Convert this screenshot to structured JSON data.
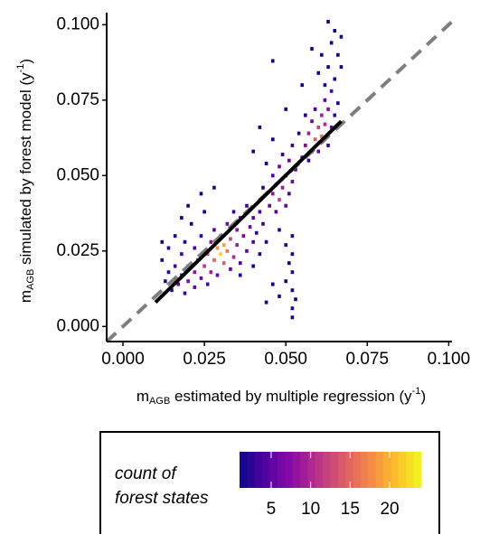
{
  "chart_data": {
    "type": "hist2d",
    "x_label": [
      {
        "text": "m"
      },
      {
        "text": "AGB",
        "style": "sub"
      },
      {
        "text": " estimated by multiple regression (y"
      },
      {
        "text": "-1",
        "style": "sup"
      },
      {
        "text": ")"
      }
    ],
    "y_label": [
      {
        "text": "m"
      },
      {
        "text": "AGB",
        "style": "sub"
      },
      {
        "text": " simulated by forest model (y"
      },
      {
        "text": "-1",
        "style": "sup"
      },
      {
        "text": ")"
      }
    ],
    "xlim": [
      -0.005,
      0.101
    ],
    "ylim": [
      -0.005,
      0.104
    ],
    "xticks": [
      {
        "value": 0,
        "label": "0.000"
      },
      {
        "value": 0.025,
        "label": "0.025"
      },
      {
        "value": 0.05,
        "label": "0.050"
      },
      {
        "value": 0.075,
        "label": "0.075"
      },
      {
        "value": 0.1,
        "label": "0.100"
      }
    ],
    "yticks": [
      {
        "value": 0,
        "label": "0.000"
      },
      {
        "value": 0.025,
        "label": "0.025"
      },
      {
        "value": 0.05,
        "label": "0.050"
      },
      {
        "value": 0.075,
        "label": "0.075"
      },
      {
        "value": 0.1,
        "label": "0.100"
      }
    ],
    "bin_width": 0.001,
    "bin_height": 0.0012,
    "colormap": "plasma",
    "identity_line": {
      "color": "#7f7f7f",
      "dashed": true
    },
    "fit_line": {
      "color": "#000000",
      "x": [
        0.01,
        0.067
      ],
      "y": [
        0.008,
        0.068
      ]
    },
    "legend": {
      "title": [
        "count of",
        "forest states"
      ],
      "clim": [
        1,
        24
      ],
      "ticks": [
        5,
        10,
        15,
        20
      ]
    },
    "cells": [
      [
        0.012,
        0.022,
        2
      ],
      [
        0.012,
        0.028,
        1
      ],
      [
        0.013,
        0.015,
        2
      ],
      [
        0.014,
        0.018,
        3
      ],
      [
        0.014,
        0.026,
        2
      ],
      [
        0.015,
        0.012,
        3
      ],
      [
        0.016,
        0.02,
        4
      ],
      [
        0.016,
        0.03,
        2
      ],
      [
        0.017,
        0.014,
        5
      ],
      [
        0.018,
        0.017,
        6
      ],
      [
        0.018,
        0.024,
        3
      ],
      [
        0.019,
        0.011,
        3
      ],
      [
        0.019,
        0.028,
        2
      ],
      [
        0.02,
        0.015,
        7
      ],
      [
        0.02,
        0.02,
        6
      ],
      [
        0.021,
        0.034,
        1
      ],
      [
        0.022,
        0.013,
        5
      ],
      [
        0.022,
        0.018,
        8
      ],
      [
        0.022,
        0.026,
        4
      ],
      [
        0.023,
        0.022,
        9
      ],
      [
        0.024,
        0.016,
        6
      ],
      [
        0.024,
        0.03,
        3
      ],
      [
        0.025,
        0.02,
        11
      ],
      [
        0.025,
        0.038,
        1
      ],
      [
        0.026,
        0.024,
        13
      ],
      [
        0.026,
        0.014,
        4
      ],
      [
        0.027,
        0.018,
        9
      ],
      [
        0.027,
        0.028,
        8
      ],
      [
        0.028,
        0.022,
        15
      ],
      [
        0.028,
        0.032,
        4
      ],
      [
        0.029,
        0.026,
        18
      ],
      [
        0.029,
        0.017,
        6
      ],
      [
        0.03,
        0.024,
        22
      ],
      [
        0.03,
        0.03,
        10
      ],
      [
        0.031,
        0.021,
        14
      ],
      [
        0.031,
        0.027,
        19
      ],
      [
        0.032,
        0.025,
        16
      ],
      [
        0.032,
        0.034,
        6
      ],
      [
        0.033,
        0.029,
        12
      ],
      [
        0.033,
        0.019,
        5
      ],
      [
        0.034,
        0.023,
        10
      ],
      [
        0.034,
        0.038,
        3
      ],
      [
        0.035,
        0.027,
        9
      ],
      [
        0.035,
        0.032,
        8
      ],
      [
        0.036,
        0.021,
        4
      ],
      [
        0.036,
        0.036,
        6
      ],
      [
        0.037,
        0.03,
        7
      ],
      [
        0.038,
        0.025,
        5
      ],
      [
        0.038,
        0.04,
        3
      ],
      [
        0.039,
        0.033,
        6
      ],
      [
        0.04,
        0.028,
        4
      ],
      [
        0.04,
        0.036,
        5
      ],
      [
        0.041,
        0.031,
        3
      ],
      [
        0.042,
        0.038,
        4
      ],
      [
        0.042,
        0.024,
        2
      ],
      [
        0.043,
        0.034,
        3
      ],
      [
        0.044,
        0.028,
        2
      ],
      [
        0.02,
        0.04,
        1
      ],
      [
        0.024,
        0.044,
        1
      ],
      [
        0.018,
        0.036,
        1
      ],
      [
        0.028,
        0.046,
        1
      ],
      [
        0.036,
        0.017,
        2
      ],
      [
        0.04,
        0.02,
        1
      ],
      [
        0.045,
        0.04,
        5
      ],
      [
        0.046,
        0.044,
        8
      ],
      [
        0.046,
        0.05,
        4
      ],
      [
        0.047,
        0.047,
        10
      ],
      [
        0.047,
        0.038,
        4
      ],
      [
        0.048,
        0.042,
        12
      ],
      [
        0.048,
        0.053,
        6
      ],
      [
        0.049,
        0.046,
        9
      ],
      [
        0.049,
        0.057,
        3
      ],
      [
        0.05,
        0.05,
        7
      ],
      [
        0.05,
        0.04,
        5
      ],
      [
        0.051,
        0.055,
        5
      ],
      [
        0.051,
        0.044,
        4
      ],
      [
        0.052,
        0.048,
        6
      ],
      [
        0.052,
        0.06,
        3
      ],
      [
        0.053,
        0.052,
        4
      ],
      [
        0.044,
        0.054,
        1
      ],
      [
        0.046,
        0.062,
        1
      ],
      [
        0.043,
        0.046,
        2
      ],
      [
        0.052,
        0.03,
        2
      ],
      [
        0.052,
        0.024,
        1
      ],
      [
        0.052,
        0.018,
        2
      ],
      [
        0.052,
        0.012,
        1
      ],
      [
        0.052,
        0.006,
        2
      ],
      [
        0.052,
        0.003,
        1
      ],
      [
        0.051,
        0.021,
        1
      ],
      [
        0.05,
        0.015,
        1
      ],
      [
        0.048,
        0.01,
        1
      ],
      [
        0.046,
        0.014,
        1
      ],
      [
        0.044,
        0.008,
        1
      ],
      [
        0.053,
        0.009,
        1
      ],
      [
        0.05,
        0.027,
        2
      ],
      [
        0.048,
        0.032,
        2
      ],
      [
        0.055,
        0.056,
        4
      ],
      [
        0.056,
        0.06,
        7
      ],
      [
        0.057,
        0.064,
        9
      ],
      [
        0.057,
        0.055,
        3
      ],
      [
        0.058,
        0.058,
        8
      ],
      [
        0.058,
        0.068,
        6
      ],
      [
        0.059,
        0.062,
        14
      ],
      [
        0.059,
        0.072,
        4
      ],
      [
        0.06,
        0.066,
        12
      ],
      [
        0.06,
        0.058,
        5
      ],
      [
        0.061,
        0.07,
        9
      ],
      [
        0.061,
        0.063,
        16
      ],
      [
        0.062,
        0.075,
        5
      ],
      [
        0.062,
        0.067,
        10
      ],
      [
        0.063,
        0.072,
        7
      ],
      [
        0.063,
        0.06,
        3
      ],
      [
        0.064,
        0.078,
        4
      ],
      [
        0.064,
        0.066,
        6
      ],
      [
        0.065,
        0.07,
        3
      ],
      [
        0.066,
        0.074,
        2
      ],
      [
        0.054,
        0.064,
        2
      ],
      [
        0.056,
        0.07,
        2
      ],
      [
        0.065,
        0.082,
        2
      ],
      [
        0.06,
        0.084,
        1
      ],
      [
        0.061,
        0.09,
        1
      ],
      [
        0.062,
        0.08,
        2
      ],
      [
        0.063,
        0.086,
        1
      ],
      [
        0.064,
        0.094,
        1
      ],
      [
        0.065,
        0.098,
        1
      ],
      [
        0.066,
        0.09,
        1
      ],
      [
        0.067,
        0.086,
        1
      ],
      [
        0.067,
        0.096,
        1
      ],
      [
        0.063,
        0.101,
        1
      ],
      [
        0.058,
        0.092,
        1
      ],
      [
        0.046,
        0.088,
        1
      ],
      [
        0.055,
        0.08,
        1
      ],
      [
        0.05,
        0.072,
        1
      ],
      [
        0.042,
        0.066,
        1
      ],
      [
        0.04,
        0.058,
        1
      ]
    ]
  }
}
